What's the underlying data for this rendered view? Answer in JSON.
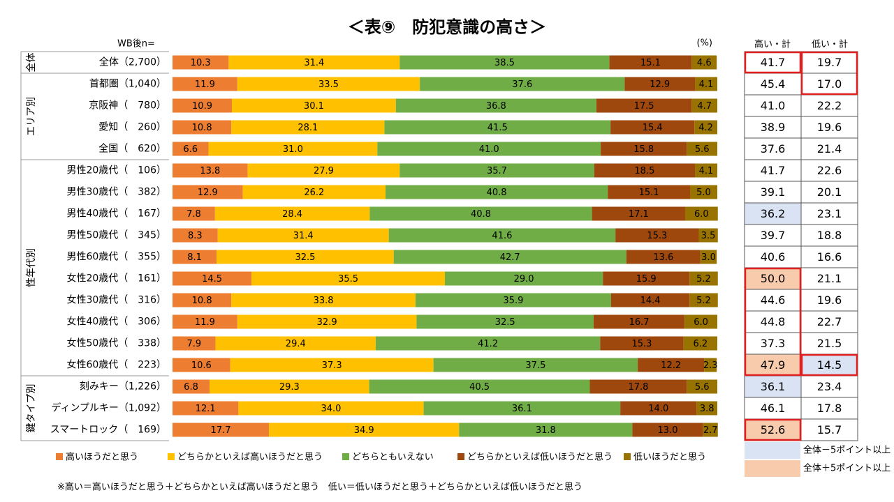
{
  "chart_data": {
    "type": "bar",
    "orientation": "horizontal",
    "stacked": true,
    "title": "＜表⑨　防犯意識の高さ＞",
    "n_label": "WB後n=",
    "unit_label": "(%)",
    "xlim": [
      0,
      100
    ],
    "groups": [
      {
        "label": "全体",
        "categories": [
          "全体（2,700）"
        ]
      },
      {
        "label": "エリア別",
        "categories": [
          "首都圏（1,040）",
          "京阪神（　780）",
          "愛知（　260）",
          "全国（　620）"
        ]
      },
      {
        "label": "性年代別",
        "categories": [
          "男性20歳代（　106）",
          "男性30歳代（　382）",
          "男性40歳代（　167）",
          "男性50歳代（　345）",
          "男性60歳代（　355）",
          "女性20歳代（　161）",
          "女性30歳代（　316）",
          "女性40歳代（　306）",
          "女性50歳代（　338）",
          "女性60歳代（　223）"
        ]
      },
      {
        "label": "鍵タイプ別",
        "categories": [
          "刻みキー（1,226）",
          "ディンプルキー（1,092）",
          "スマートロック（　169）"
        ]
      }
    ],
    "series": [
      {
        "name": "高いほうだと思う",
        "color": "#ed7d31",
        "values": [
          10.3,
          11.9,
          10.9,
          10.8,
          6.6,
          13.8,
          12.9,
          7.8,
          8.3,
          8.1,
          14.5,
          10.8,
          11.9,
          7.9,
          10.6,
          6.8,
          12.1,
          17.7
        ],
        "value_labels": [
          "10.3",
          "11.9",
          "10.9",
          "10.8",
          "6.6",
          "13.8",
          "12.9",
          "7.8",
          "8.3",
          "8.1",
          "14.5",
          "10.8",
          "11.9",
          "7.9",
          "10.6",
          "6.8",
          "12.1",
          "17.7"
        ]
      },
      {
        "name": "どちらかといえば高いほうだと思う",
        "color": "#ffc000",
        "values": [
          31.4,
          33.5,
          30.1,
          28.1,
          31.0,
          27.9,
          26.2,
          28.4,
          31.4,
          32.5,
          35.5,
          33.8,
          32.9,
          29.4,
          37.3,
          29.3,
          34.0,
          34.9
        ],
        "value_labels": [
          "31.4",
          "33.5",
          "30.1",
          "28.1",
          "31.0",
          "27.9",
          "26.2",
          "28.4",
          "31.4",
          "32.5",
          "35.5",
          "33.8",
          "32.9",
          "29.4",
          "37.3",
          "29.3",
          "34.0",
          "34.9"
        ]
      },
      {
        "name": "どちらともいえない",
        "color": "#70ad47",
        "values": [
          38.5,
          37.6,
          36.8,
          41.5,
          41.0,
          35.7,
          40.8,
          40.8,
          41.6,
          42.7,
          29.0,
          35.9,
          32.5,
          41.2,
          37.5,
          40.5,
          36.1,
          31.8
        ],
        "value_labels": [
          "38.5",
          "37.6",
          "36.8",
          "41.5",
          "41.0",
          "35.7",
          "40.8",
          "40.8",
          "41.6",
          "42.7",
          "29.0",
          "35.9",
          "32.5",
          "41.2",
          "37.5",
          "40.5",
          "36.1",
          "31.8"
        ]
      },
      {
        "name": "どちらかといえば低いほうだと思う",
        "color": "#9e480e",
        "values": [
          15.1,
          12.9,
          17.5,
          15.4,
          15.8,
          18.5,
          15.1,
          17.1,
          15.3,
          13.6,
          15.9,
          14.4,
          16.7,
          15.3,
          12.2,
          17.8,
          14.0,
          13.0
        ],
        "value_labels": [
          "15.1",
          "12.9",
          "17.5",
          "15.4",
          "15.8",
          "18.5",
          "15.1",
          "17.1",
          "15.3",
          "13.6",
          "15.9",
          "14.4",
          "16.7",
          "15.3",
          "12.2",
          "17.8",
          "14.0",
          "13.0"
        ]
      },
      {
        "name": "低いほうだと思う",
        "color": "#997300",
        "values": [
          4.6,
          4.1,
          4.7,
          4.2,
          5.6,
          4.1,
          5.0,
          6.0,
          3.5,
          3.0,
          5.2,
          5.2,
          6.0,
          6.2,
          2.3,
          5.6,
          3.8,
          2.7
        ],
        "value_labels": [
          "4.6",
          "4.1",
          "4.7",
          "4.2",
          "5.6",
          "4.1",
          "5.0",
          "6.0",
          "3.5",
          "3.0",
          "5.2",
          "5.2",
          "6.0",
          "6.2",
          "2.3",
          "5.6",
          "3.8",
          "2.7"
        ]
      }
    ],
    "totals": [
      {
        "name": "高い・計",
        "values": [
          41.7,
          45.4,
          41.0,
          38.9,
          37.6,
          41.7,
          39.1,
          36.2,
          39.7,
          40.6,
          50.0,
          44.6,
          44.8,
          37.3,
          47.9,
          36.1,
          46.1,
          52.6
        ],
        "value_labels": [
          "41.7",
          "45.4",
          "41.0",
          "38.9",
          "37.6",
          "41.7",
          "39.1",
          "36.2",
          "39.7",
          "40.6",
          "50.0",
          "44.6",
          "44.8",
          "37.3",
          "47.9",
          "36.1",
          "46.1",
          "52.6"
        ],
        "fills": [
          null,
          null,
          null,
          null,
          null,
          null,
          null,
          "#dae3f3",
          null,
          null,
          "#f8cbad",
          null,
          null,
          null,
          "#f8cbad",
          "#dae3f3",
          null,
          "#f8cbad"
        ]
      },
      {
        "name": "低い・計",
        "values": [
          19.7,
          17.0,
          22.2,
          19.6,
          21.4,
          22.6,
          20.1,
          23.1,
          18.8,
          16.6,
          21.1,
          19.6,
          22.7,
          21.5,
          14.5,
          23.4,
          17.8,
          15.7
        ],
        "value_labels": [
          "19.7",
          "17.0",
          "22.2",
          "19.6",
          "21.4",
          "22.6",
          "20.1",
          "23.1",
          "18.8",
          "16.6",
          "21.1",
          "19.6",
          "22.7",
          "21.5",
          "14.5",
          "23.4",
          "17.8",
          "15.7"
        ],
        "fills": [
          null,
          null,
          null,
          null,
          null,
          null,
          null,
          null,
          null,
          null,
          null,
          null,
          null,
          null,
          "#dae3f3",
          null,
          null,
          null
        ]
      }
    ],
    "highlight_legend": [
      {
        "label": "全体－5ポイント以上",
        "color": "#dae3f3"
      },
      {
        "label": "全体＋5ポイント以上",
        "color": "#f8cbad"
      }
    ],
    "footnote": "※高い＝高いほうだと思う＋どちらかといえば高いほうだと思う　低い＝低いほうだと思う＋どちらかといえば低いほうだと思う"
  }
}
